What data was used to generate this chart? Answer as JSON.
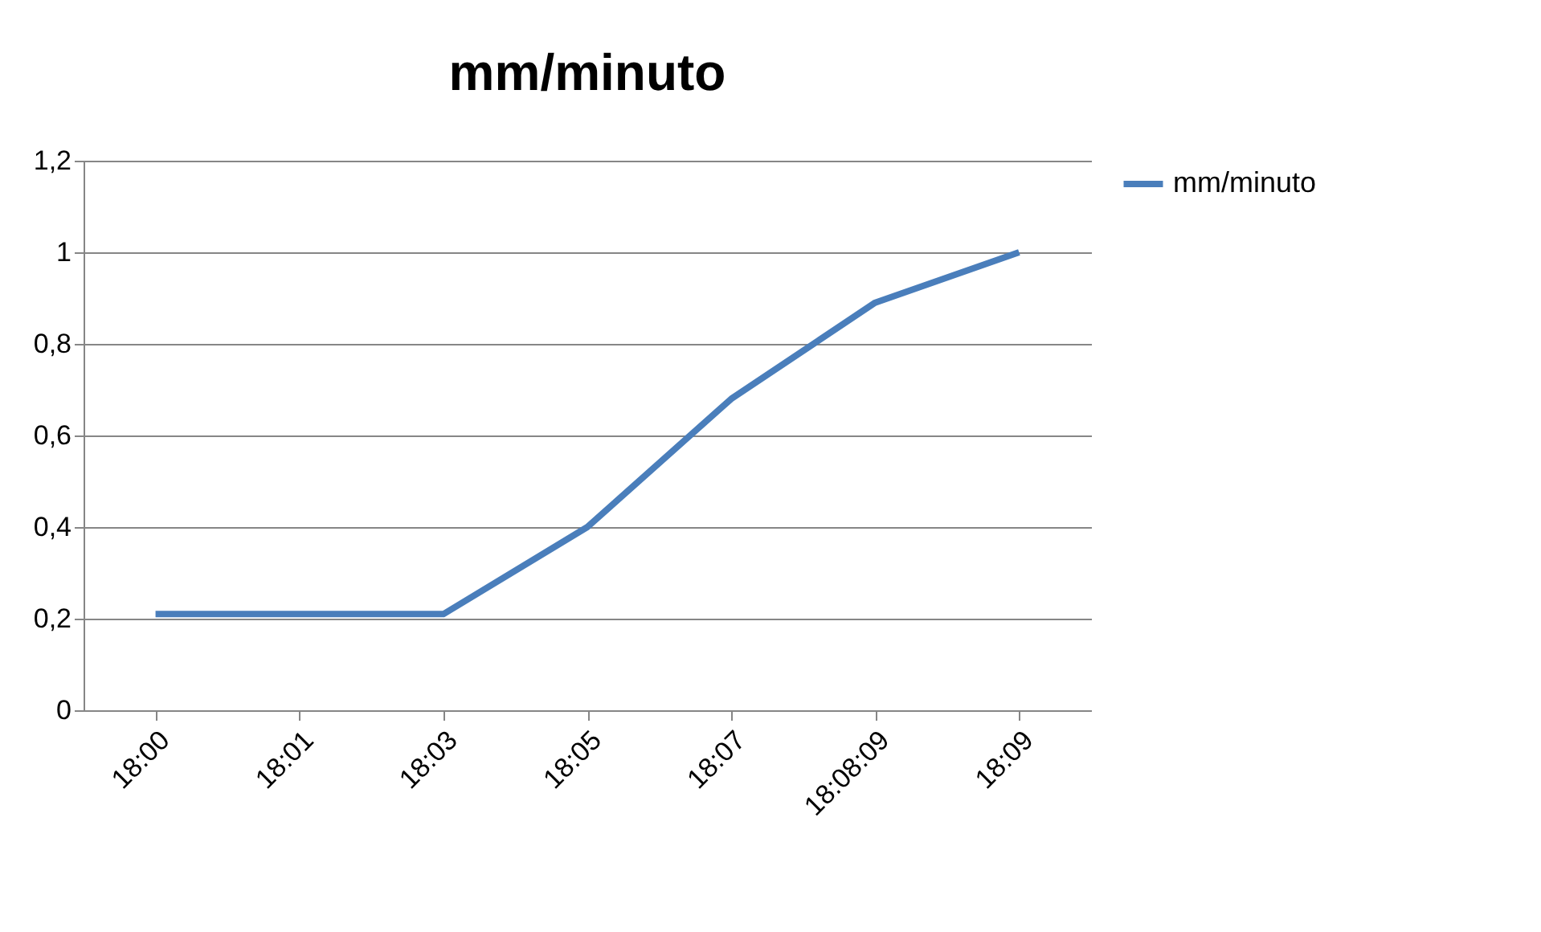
{
  "chart_data": {
    "type": "line",
    "title": "mm/minuto",
    "categories": [
      "18:00",
      "18:01",
      "18:03",
      "18:05",
      "18:07",
      "18:08:09",
      "18:09"
    ],
    "series": [
      {
        "name": "mm/minuto",
        "color": "#4a7ebb",
        "values": [
          0.21,
          0.21,
          0.21,
          0.4,
          0.68,
          0.89,
          1.0
        ]
      }
    ],
    "ylim": [
      0,
      1.2
    ],
    "yticks": [
      0,
      {
        "value": 0.2,
        "label": "0,2"
      },
      {
        "value": 0.4,
        "label": "0,4"
      },
      {
        "value": 0.6,
        "label": "0,6"
      },
      {
        "value": 0.8,
        "label": "0,8"
      },
      1,
      {
        "value": 1.2,
        "label": "1,2"
      }
    ],
    "grid": "y",
    "legend": "right",
    "marker": "none",
    "line_style": "solid"
  }
}
